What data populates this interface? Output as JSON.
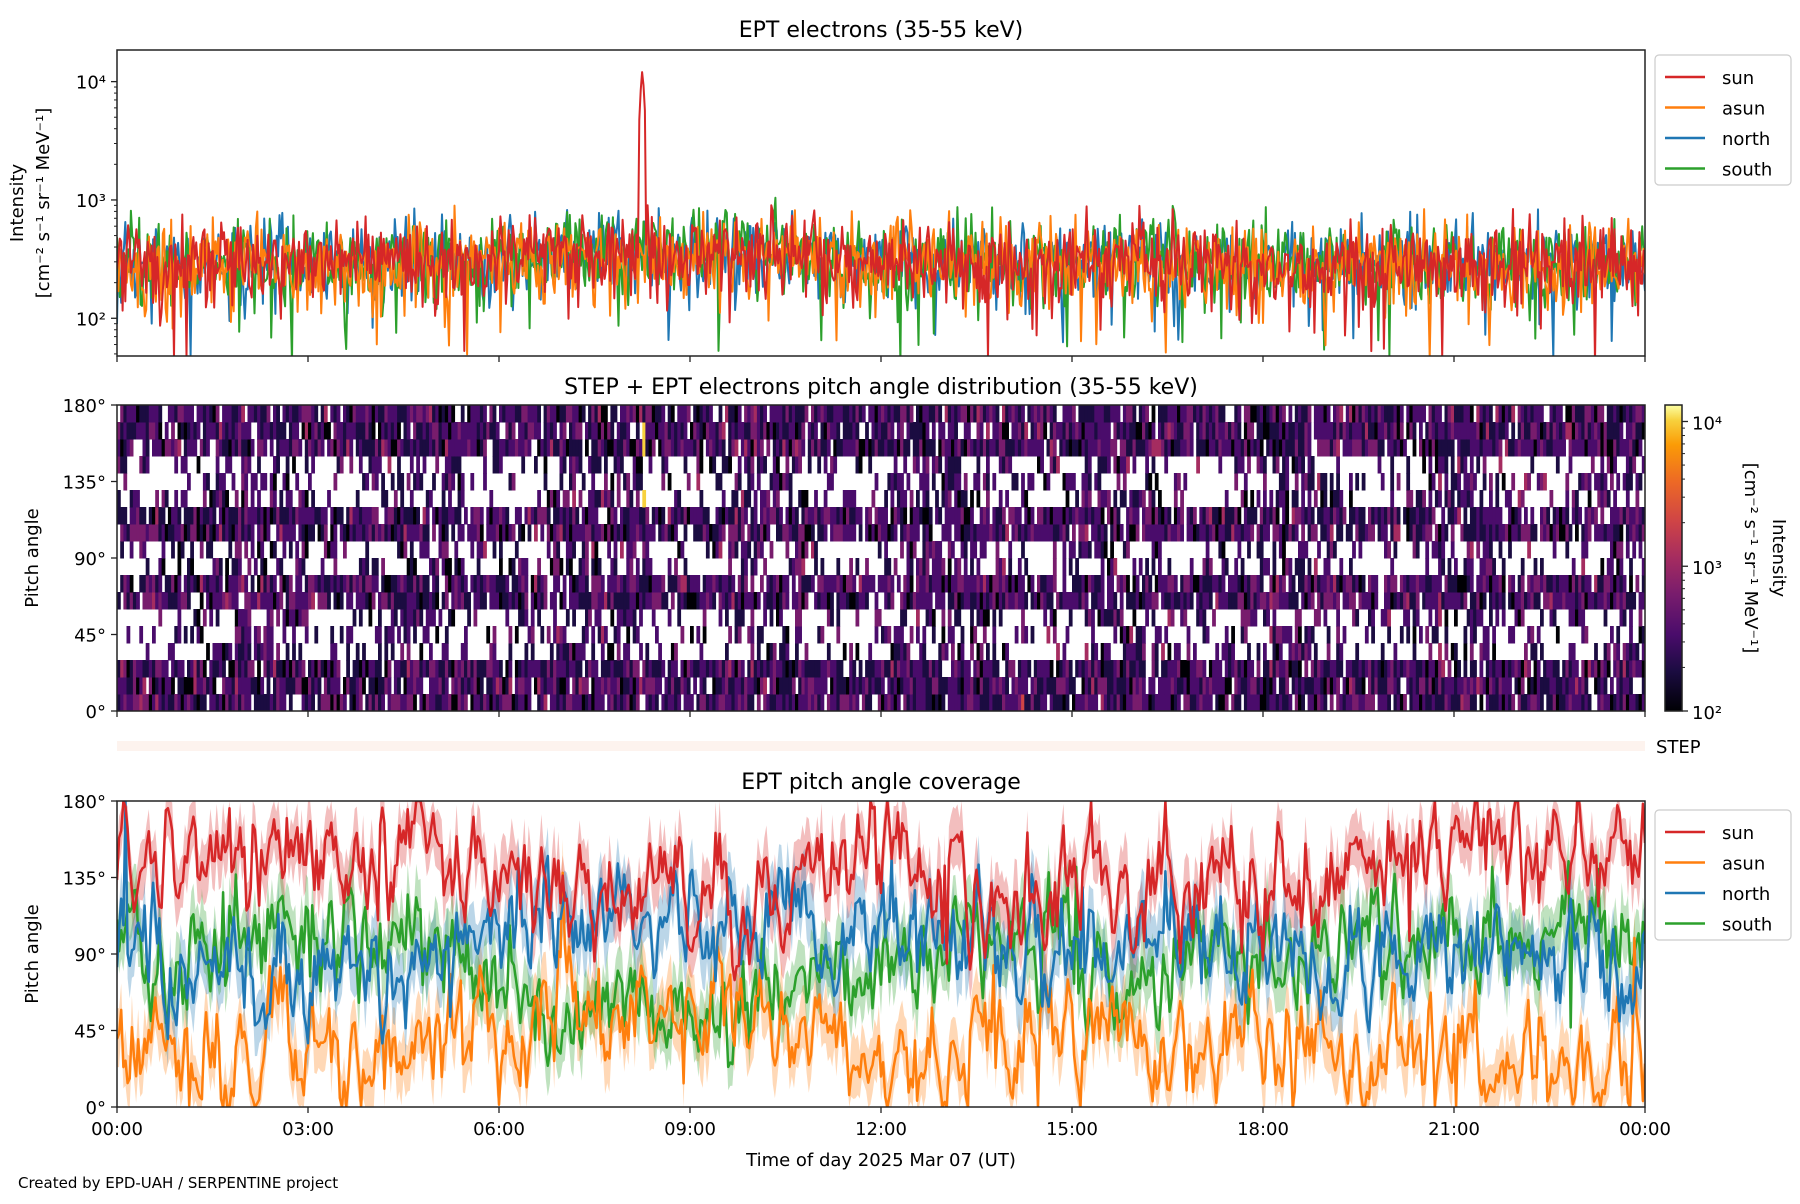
{
  "chart_data": [
    {
      "type": "line",
      "title": "EPT electrons (35-55 keV)",
      "ylabel": "Intensity",
      "ylabel_units": "[cm⁻² s⁻¹ sr⁻¹ MeV⁻¹]",
      "yscale": "log",
      "ylim": [
        48,
        18500
      ],
      "yticks": [
        {
          "value": 100,
          "label": "10²"
        },
        {
          "value": 1000,
          "label": "10³"
        },
        {
          "value": 10000,
          "label": "10⁴"
        }
      ],
      "xlim_hours": [
        0,
        24
      ],
      "legend_placement": "outside-right-top",
      "series": [
        {
          "name": "sun",
          "color": "#d62728",
          "typical": 300,
          "log_spread": 0.28
        },
        {
          "name": "asun",
          "color": "#ff7f0e",
          "typical": 280,
          "log_spread": 0.3
        },
        {
          "name": "north",
          "color": "#1f77b4",
          "typical": 300,
          "log_spread": 0.28
        },
        {
          "name": "south",
          "color": "#2ca02c",
          "typical": 300,
          "log_spread": 0.28
        }
      ],
      "annotations": [
        {
          "series": "sun",
          "time_hours": 8.25,
          "value": 12500,
          "note": "spike"
        }
      ]
    },
    {
      "type": "heatmap",
      "title": "STEP + EPT electrons pitch angle distribution (35-55 keV)",
      "ylabel": "Pitch angle",
      "ylim": [
        0,
        180
      ],
      "yticks": [
        "0°",
        "45°",
        "90°",
        "135°",
        "180°"
      ],
      "xlim_hours": [
        0,
        24
      ],
      "colorbar": {
        "label": "Intensity",
        "units": "[cm⁻² s⁻¹ sr⁻¹ MeV⁻¹]",
        "scale": "log",
        "range": [
          100,
          13000
        ],
        "ticks": [
          {
            "value": 100,
            "label": "10²"
          },
          {
            "value": 1000,
            "label": "10³"
          },
          {
            "value": 10000,
            "label": "10⁴"
          }
        ],
        "colormap": "inferno"
      },
      "typical_intensity": 300
    },
    {
      "type": "line",
      "title": "STEP",
      "note": "STEP strip (empty)"
    },
    {
      "type": "line",
      "title": "EPT pitch angle coverage",
      "ylabel": "Pitch angle",
      "ylim": [
        0,
        180
      ],
      "yticks": [
        "0°",
        "45°",
        "90°",
        "135°",
        "180°"
      ],
      "xlabel": "Time of day 2025 Mar 07 (UT)",
      "xticks": [
        "00:00",
        "03:00",
        "06:00",
        "09:00",
        "12:00",
        "15:00",
        "18:00",
        "21:00",
        "00:00"
      ],
      "legend_placement": "outside-right-top",
      "hours": [
        0,
        1,
        2,
        3,
        4,
        5,
        6,
        7,
        8,
        9,
        10,
        11,
        12,
        13,
        14,
        15,
        16,
        17,
        18,
        19,
        20,
        21,
        22,
        23,
        24
      ],
      "series": [
        {
          "name": "sun",
          "color": "#d62728",
          "hourly_mean": [
            150,
            155,
            150,
            150,
            145,
            145,
            135,
            130,
            125,
            125,
            120,
            125,
            150,
            140,
            120,
            140,
            125,
            120,
            130,
            135,
            145,
            155,
            155,
            150,
            150
          ]
        },
        {
          "name": "asun",
          "color": "#ff7f0e",
          "hourly_mean": [
            35,
            30,
            30,
            30,
            35,
            40,
            55,
            60,
            60,
            55,
            55,
            50,
            30,
            35,
            50,
            40,
            35,
            40,
            35,
            30,
            30,
            25,
            25,
            25,
            30
          ]
        },
        {
          "name": "north",
          "color": "#1f77b4",
          "hourly_mean": [
            90,
            80,
            80,
            75,
            80,
            85,
            110,
            120,
            115,
            110,
            100,
            100,
            100,
            95,
            95,
            90,
            100,
            95,
            90,
            90,
            90,
            90,
            85,
            85,
            90
          ]
        },
        {
          "name": "south",
          "color": "#2ca02c",
          "hourly_mean": [
            100,
            100,
            95,
            100,
            95,
            95,
            70,
            55,
            50,
            55,
            65,
            75,
            80,
            85,
            90,
            90,
            80,
            85,
            90,
            90,
            90,
            90,
            95,
            95,
            95
          ]
        }
      ]
    }
  ],
  "legend": {
    "items": [
      "sun",
      "asun",
      "north",
      "south"
    ]
  },
  "step_label": "STEP",
  "credit": "Created by EPD-UAH / SERPENTINE project"
}
